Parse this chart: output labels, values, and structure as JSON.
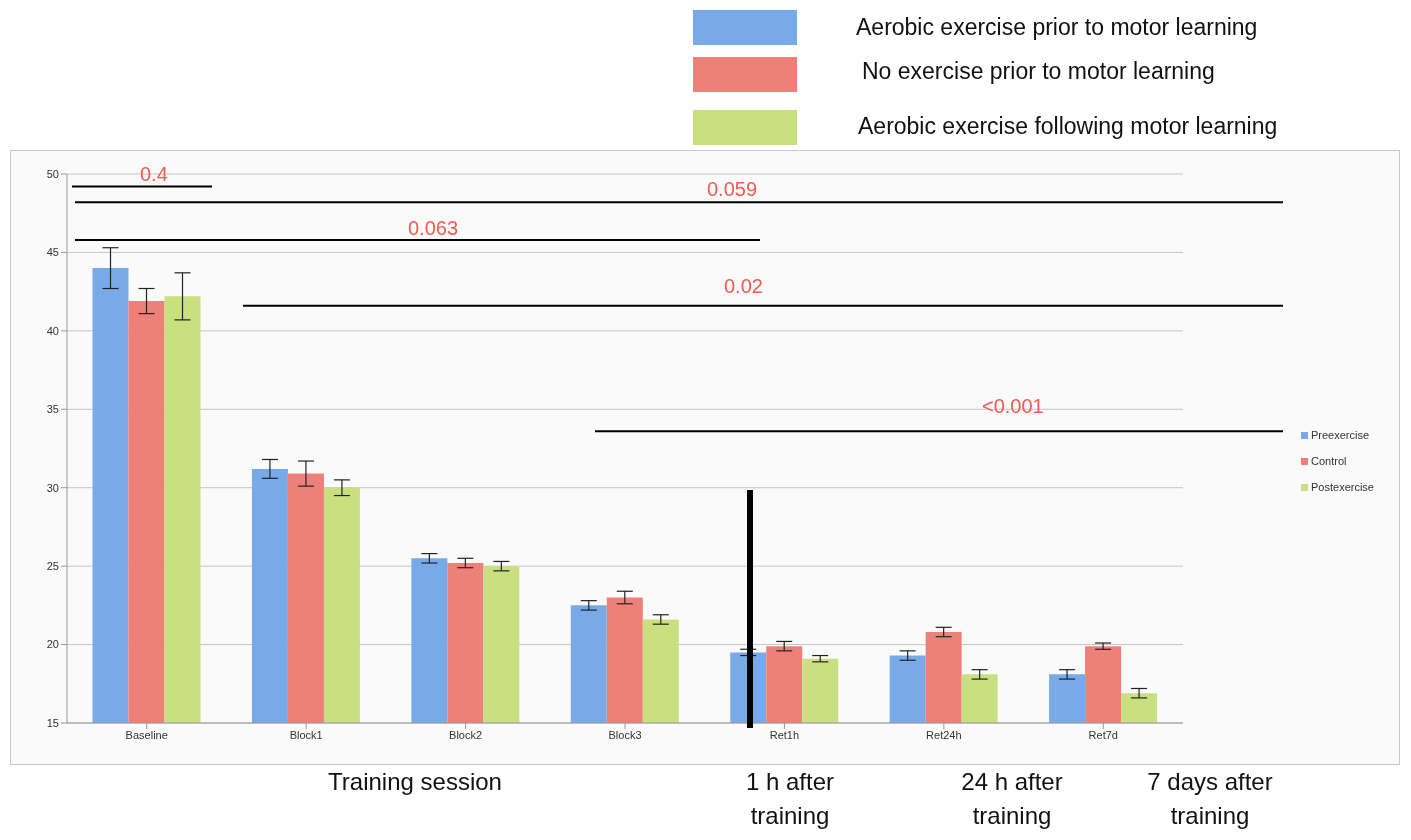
{
  "chart_data": {
    "type": "bar",
    "categories": [
      "Baseline",
      "Block1",
      "Block2",
      "Block3",
      "Ret1h",
      "Ret24h",
      "Ret7d"
    ],
    "series": [
      {
        "name": "Preexercise",
        "color": "#78aae8",
        "values": [
          44.0,
          31.2,
          25.5,
          22.5,
          19.5,
          19.3,
          18.1
        ],
        "errors": [
          1.3,
          0.6,
          0.3,
          0.3,
          0.2,
          0.3,
          0.3
        ]
      },
      {
        "name": "Control",
        "color": "#ee8079",
        "values": [
          41.9,
          30.9,
          25.2,
          23.0,
          19.9,
          20.8,
          19.9
        ],
        "errors": [
          0.8,
          0.8,
          0.3,
          0.4,
          0.3,
          0.3,
          0.2
        ]
      },
      {
        "name": "Postexercise",
        "color": "#c8e07f",
        "values": [
          42.2,
          30.0,
          25.0,
          21.6,
          19.1,
          18.1,
          16.9
        ],
        "errors": [
          1.5,
          0.5,
          0.3,
          0.3,
          0.2,
          0.3,
          0.3
        ]
      }
    ],
    "ylim": [
      15,
      50
    ],
    "yticks": [
      15,
      20,
      25,
      30,
      35,
      40,
      45,
      50
    ],
    "grid": "y",
    "legend": "right",
    "ref_lines": [
      {
        "axis": "y",
        "value": 49.2
      },
      {
        "axis": "y",
        "value": 48.2
      },
      {
        "axis": "y",
        "value": 45.8
      },
      {
        "axis": "y",
        "value": 41.6
      },
      {
        "axis": "y",
        "value": 33.6
      }
    ],
    "annotations": [
      "Aerobic exercise prior to motor learning",
      "No exercise prior to motor learning",
      "Aerobic exercise following motor learning",
      "Training session",
      "1 h after training",
      "24 h after training",
      "7 days after training",
      "0.4",
      "0.059",
      "0.063",
      "0.02",
      "<0.001"
    ]
  }
}
